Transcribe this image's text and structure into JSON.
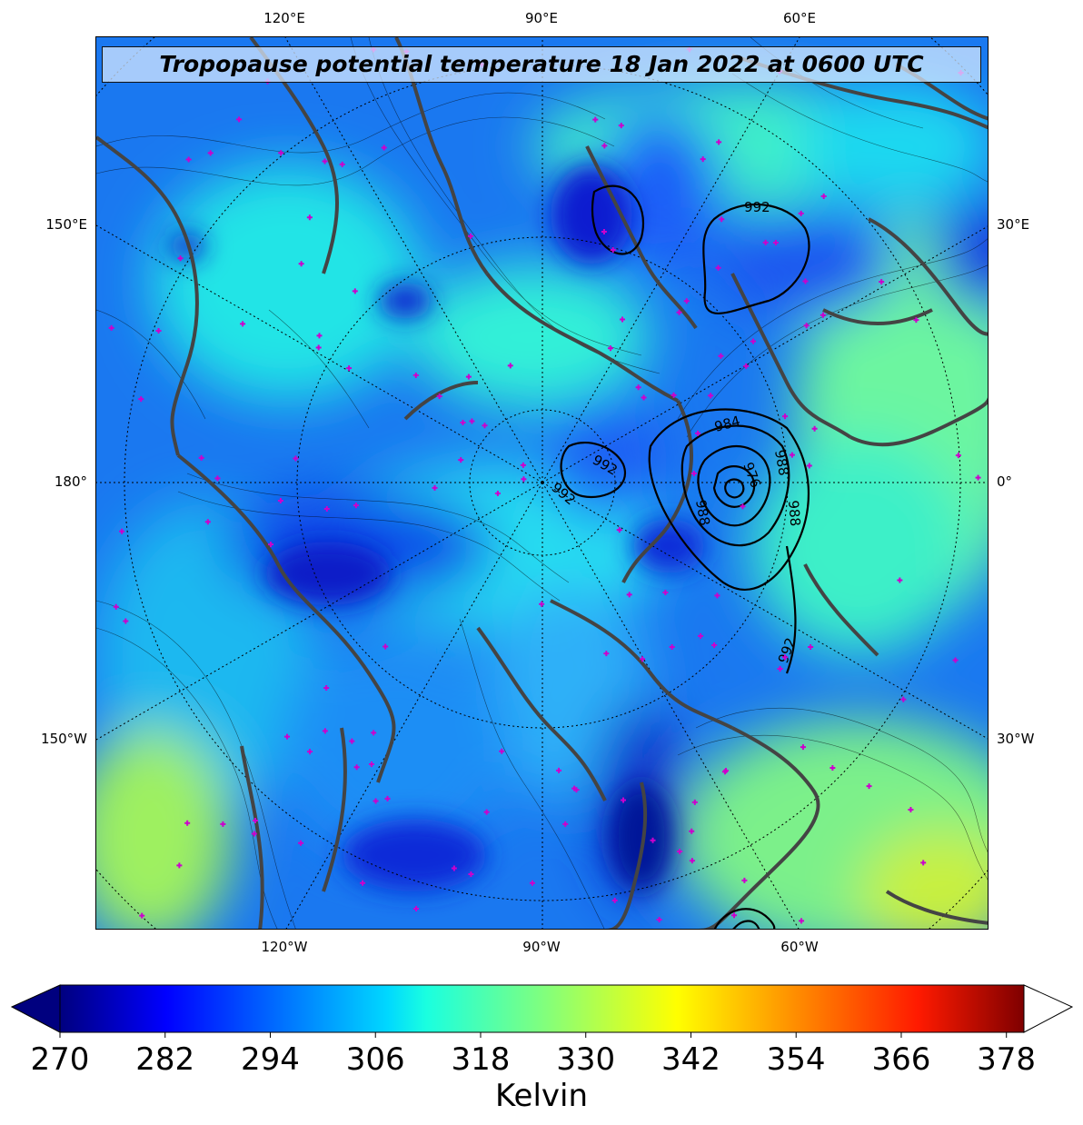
{
  "title": "Tropopause potential temperature 18 Jan 2022 at 0600 UTC",
  "axes": {
    "top": [
      "120°E",
      "90°E",
      "60°E"
    ],
    "bottom": [
      "120°W",
      "90°W",
      "60°W"
    ],
    "left": [
      "150°E",
      "180°",
      "150°W"
    ],
    "right": [
      "30°E",
      "0°",
      "30°W"
    ]
  },
  "pressure_contours": {
    "units": "hPa",
    "labels": [
      "992",
      "992",
      "992",
      "984",
      "988",
      "976",
      "988",
      "988",
      "992"
    ]
  },
  "colorbar": {
    "ticks": [
      "270",
      "282",
      "294",
      "306",
      "318",
      "330",
      "342",
      "354",
      "366",
      "378"
    ],
    "label": "Kelvin",
    "min": 270,
    "max": 380,
    "extend": "both",
    "colormap": "jet",
    "colors": [
      "#00007f",
      "#0000ff",
      "#007fff",
      "#00ffff",
      "#7fff7f",
      "#ffff00",
      "#ff7f00",
      "#ff0000",
      "#7f0000"
    ]
  },
  "overlays": {
    "coastline_color": "#444444",
    "contour_color": "#000000",
    "marker_color": "#cc00cc",
    "marker_icon": "plus-marker-icon"
  }
}
